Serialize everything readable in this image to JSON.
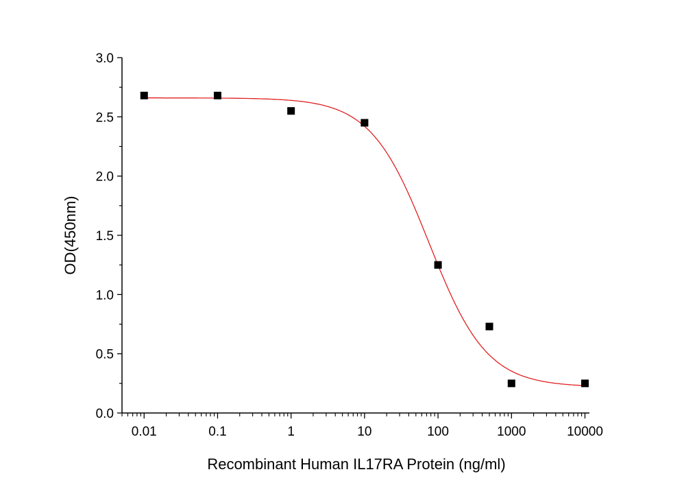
{
  "chart_data": {
    "type": "scatter",
    "title": "",
    "xlabel": "Recombinant Human IL17RA Protein (ng/ml)",
    "ylabel": "OD(450nm)",
    "xscale": "log",
    "xlim": [
      0.005,
      11500
    ],
    "ylim": [
      0,
      3.0
    ],
    "xticks": [
      0.01,
      0.1,
      1,
      10,
      100,
      1000,
      10000
    ],
    "xtick_labels": [
      "0.01",
      "0.1",
      "1",
      "10",
      "100",
      "1000",
      "10000"
    ],
    "yticks": [
      0,
      0.5,
      1.0,
      1.5,
      2.0,
      2.5,
      3.0
    ],
    "ytick_labels": [
      "0.0",
      "0.5",
      "1.0",
      "1.5",
      "2.0",
      "2.5",
      "3.0"
    ],
    "grid": false,
    "series": [
      {
        "name": "data",
        "kind": "points",
        "color": "#000000",
        "x": [
          0.01,
          0.1,
          1,
          10,
          100,
          500,
          1000,
          10000
        ],
        "y": [
          2.68,
          2.68,
          2.55,
          2.45,
          1.25,
          0.73,
          0.25,
          0.25
        ]
      },
      {
        "name": "fit",
        "kind": "4PL curve",
        "color": "#e02020",
        "params": {
          "top": 2.66,
          "bottom": 0.22,
          "ec50": 75,
          "hill": 1.1
        }
      }
    ]
  }
}
